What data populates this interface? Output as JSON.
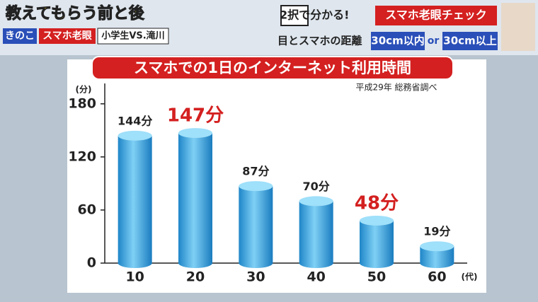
{
  "header": {
    "show_title": "教えてもらう前と後",
    "tags": [
      "きのこ",
      "スマホ老眼",
      "小学生VS.滝川"
    ],
    "quiz": "2択で分かる!",
    "quiz_title": "スマホ老眼チェック",
    "question": "目とスマホの距離",
    "option_a": "30cm以内",
    "or": "or",
    "option_b": "30cm以上"
  },
  "chart_data": {
    "type": "bar",
    "title": "スマホでの1日のインターネット利用時間",
    "source": "平成29年 総務省調べ",
    "y_unit": "(分)",
    "x_unit": "(代)",
    "categories": [
      "10",
      "20",
      "30",
      "40",
      "50",
      "60"
    ],
    "values": [
      144,
      147,
      87,
      70,
      48,
      19
    ],
    "value_labels": [
      "144分",
      "147分",
      "87分",
      "70分",
      "48分",
      "19分"
    ],
    "label_colors": [
      "#222222",
      "#d42020",
      "#222222",
      "#222222",
      "#d42020",
      "#222222"
    ],
    "color": "#3aa6e0",
    "ylim": [
      0,
      203
    ],
    "yticks": [
      0,
      60,
      120,
      180
    ]
  }
}
